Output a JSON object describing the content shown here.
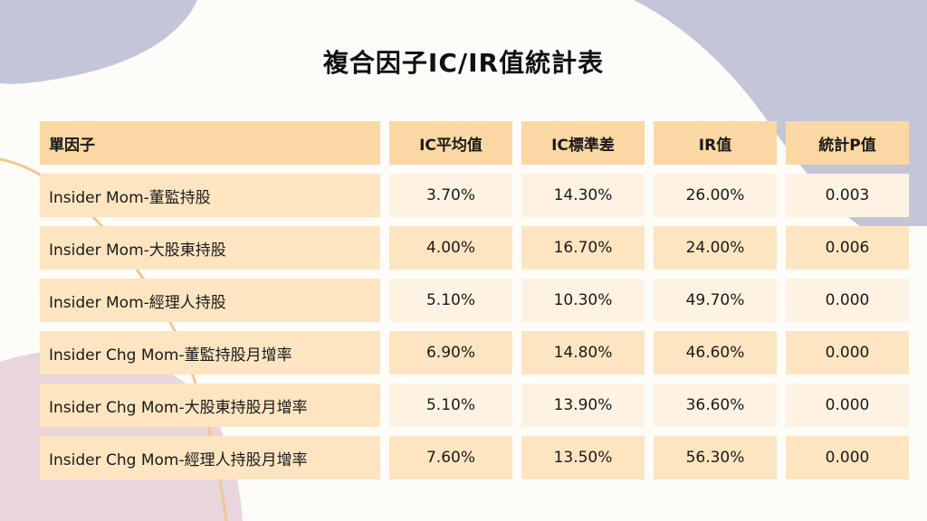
{
  "title": "複合因子IC/IR值統計表",
  "headers": [
    "單因子",
    "IC平均值",
    "IC標準差",
    "IR值",
    "統計P值"
  ],
  "rows": [
    [
      "Insider Mom-董監持股",
      "3.70%",
      "14.30%",
      "26.00%",
      "0.003"
    ],
    [
      "Insider Mom-大股東持股",
      "4.00%",
      "16.70%",
      "24.00%",
      "0.006"
    ],
    [
      "Insider Mom-經理人持股",
      "5.10%",
      "10.30%",
      "49.70%",
      "0.000"
    ],
    [
      "Insider Chg Mom-董監持股月增率",
      "6.90%",
      "14.80%",
      "46.60%",
      "0.000"
    ],
    [
      "Insider Chg Mom-大股東持股月增率",
      "5.10%",
      "13.90%",
      "36.60%",
      "0.000"
    ],
    [
      "Insider Chg Mom-經理人持股月增率",
      "7.60%",
      "13.50%",
      "56.30%",
      "0.000"
    ]
  ],
  "colors": {
    "header": "#fbd7a3",
    "row_dark": "#fde5c1",
    "row_light": "#fef2e2",
    "blob_purple": "#c3c6d9",
    "blob_pink": "#e8d6dc",
    "curve_orange": "#f1c690"
  }
}
